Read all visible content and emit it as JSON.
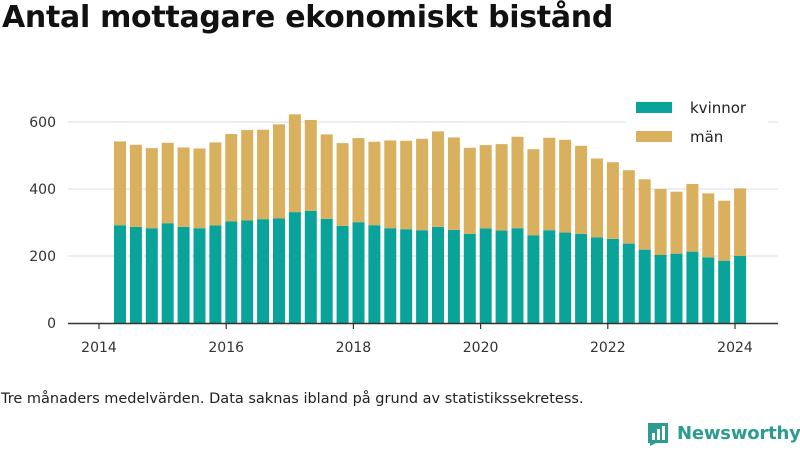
{
  "title": "Antal mottagare ekonomiskt bistånd",
  "note": "Tre månaders medelvärden. Data saknas ibland på grund av statistikssekretess.",
  "brand": {
    "name": "Newsworthy"
  },
  "colors": {
    "kvinnor": "#0aa39a",
    "man": "#d9b05e",
    "grid": "#dddddd",
    "axis": "#333333"
  },
  "chart_data": {
    "type": "bar",
    "stacked": true,
    "xlabel": "",
    "ylabel": "",
    "ylim": [
      0,
      650
    ],
    "xlim": [
      2014,
      2024.7
    ],
    "xticks": [
      "2014",
      "2016",
      "2018",
      "2020",
      "2022",
      "2024"
    ],
    "yticks": [
      "0",
      "200",
      "400",
      "600"
    ],
    "grid": "horizontal",
    "legend_position": "top-right",
    "x": [
      2014.33,
      2014.58,
      2014.83,
      2015.08,
      2015.33,
      2015.58,
      2015.83,
      2016.08,
      2016.33,
      2016.58,
      2016.83,
      2017.08,
      2017.33,
      2017.58,
      2017.83,
      2018.08,
      2018.33,
      2018.58,
      2018.83,
      2019.08,
      2019.33,
      2019.58,
      2019.83,
      2020.08,
      2020.33,
      2020.58,
      2020.83,
      2021.08,
      2021.33,
      2021.58,
      2021.83,
      2022.08,
      2022.33,
      2022.58,
      2022.83,
      2023.08,
      2023.33,
      2023.58,
      2023.83,
      2024.08
    ],
    "series": [
      {
        "name": "kvinnor",
        "values": [
          292,
          287,
          283,
          298,
          287,
          283,
          291,
          303,
          306,
          310,
          312,
          331,
          335,
          311,
          290,
          301,
          292,
          283,
          280,
          277,
          287,
          278,
          266,
          282,
          276,
          283,
          262,
          277,
          270,
          266,
          256,
          251,
          237,
          219,
          203,
          207,
          213,
          196,
          186,
          200
        ]
      },
      {
        "name": "män",
        "values": [
          250,
          245,
          239,
          240,
          237,
          238,
          248,
          261,
          270,
          267,
          281,
          292,
          271,
          252,
          247,
          251,
          249,
          262,
          264,
          273,
          285,
          276,
          257,
          249,
          258,
          273,
          257,
          276,
          277,
          263,
          235,
          229,
          219,
          210,
          197,
          185,
          202,
          191,
          179,
          202
        ]
      }
    ]
  }
}
